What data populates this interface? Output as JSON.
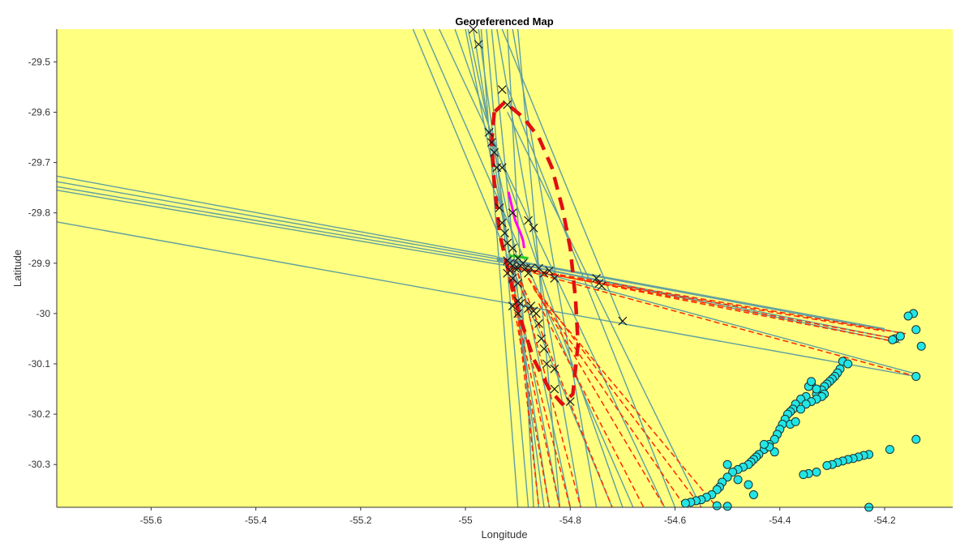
{
  "chart_data": {
    "type": "scatter",
    "title": "Georeferenced Map",
    "xlabel": "Longitude",
    "ylabel": "Latitude",
    "xlim": [
      -55.78,
      -54.07
    ],
    "ylim": [
      -30.385,
      -29.435
    ],
    "xticks": [
      -55.6,
      -55.4,
      -55.2,
      -55,
      -54.8,
      -54.6,
      -54.4,
      -54.2
    ],
    "yticks": [
      -29.5,
      -29.6,
      -29.7,
      -29.8,
      -29.9,
      -30,
      -30.1,
      -30.2,
      -30.3
    ],
    "grid": false,
    "colors": {
      "background": "#ffff80",
      "bearing_line": "#5f9ea0",
      "dashed_line": "#ff2a00",
      "ellipse": "#e01010",
      "receiver_fill": "#22e6e6",
      "receiver_edge": "#1a3030",
      "cross": "#1a1a1a",
      "track_magenta": "#ff00ff",
      "track_green": "#22cc22"
    },
    "series": [
      {
        "kind": "bearing_lines",
        "segments": [
          [
            [
              -55.78,
              -29.727
            ],
            [
              -54.94,
              -29.887
            ]
          ],
          [
            [
              -55.78,
              -29.738
            ],
            [
              -54.93,
              -29.893
            ]
          ],
          [
            [
              -55.78,
              -29.748
            ],
            [
              -54.92,
              -29.9
            ]
          ],
          [
            [
              -55.78,
              -29.755
            ],
            [
              -54.92,
              -29.905
            ]
          ],
          [
            [
              -55.78,
              -29.818
            ],
            [
              -54.14,
              -30.125
            ]
          ],
          [
            [
              -54.94,
              -29.895
            ],
            [
              -54.14,
              -30.12
            ]
          ],
          [
            [
              -54.94,
              -29.893
            ],
            [
              -54.18,
              -30.05
            ]
          ],
          [
            [
              -54.94,
              -29.89
            ],
            [
              -54.16,
              -30.04
            ]
          ],
          [
            [
              -54.94,
              -29.888
            ],
            [
              -54.2,
              -30.03
            ]
          ],
          [
            [
              -54.94,
              -29.893
            ],
            [
              -54.17,
              -30.058
            ]
          ],
          [
            [
              -55.1,
              -29.435
            ],
            [
              -54.72,
              -30.385
            ]
          ],
          [
            [
              -55.08,
              -29.435
            ],
            [
              -54.68,
              -30.385
            ]
          ],
          [
            [
              -55.05,
              -29.435
            ],
            [
              -54.62,
              -30.385
            ]
          ],
          [
            [
              -55.02,
              -29.435
            ],
            [
              -54.7,
              -30.385
            ]
          ],
          [
            [
              -55.0,
              -29.435
            ],
            [
              -54.82,
              -30.385
            ]
          ],
          [
            [
              -54.995,
              -29.435
            ],
            [
              -54.8,
              -30.385
            ]
          ],
          [
            [
              -54.985,
              -29.435
            ],
            [
              -54.84,
              -30.385
            ]
          ],
          [
            [
              -54.975,
              -29.435
            ],
            [
              -54.85,
              -30.385
            ]
          ],
          [
            [
              -54.97,
              -29.435
            ],
            [
              -54.9,
              -30.385
            ]
          ],
          [
            [
              -54.96,
              -29.435
            ],
            [
              -54.88,
              -30.385
            ]
          ],
          [
            [
              -54.95,
              -29.435
            ],
            [
              -54.86,
              -30.385
            ]
          ],
          [
            [
              -54.94,
              -29.435
            ],
            [
              -54.78,
              -30.385
            ]
          ],
          [
            [
              -54.93,
              -29.435
            ],
            [
              -54.7,
              -30.02
            ]
          ],
          [
            [
              -54.92,
              -29.435
            ],
            [
              -54.87,
              -30.385
            ]
          ],
          [
            [
              -54.91,
              -29.435
            ],
            [
              -54.75,
              -30.385
            ]
          ],
          [
            [
              -54.9,
              -29.435
            ],
            [
              -54.82,
              -30.385
            ]
          ],
          [
            [
              -54.92,
              -29.55
            ],
            [
              -54.6,
              -30.385
            ]
          ],
          [
            [
              -54.92,
              -29.6
            ],
            [
              -54.55,
              -30.385
            ]
          ]
        ]
      },
      {
        "kind": "dashed_lines",
        "segments": [
          [
            [
              -54.92,
              -29.905
            ],
            [
              -54.14,
              -30.125
            ]
          ],
          [
            [
              -54.92,
              -29.905
            ],
            [
              -54.16,
              -30.04
            ]
          ],
          [
            [
              -54.92,
              -29.905
            ],
            [
              -54.18,
              -30.05
            ]
          ],
          [
            [
              -54.92,
              -29.905
            ],
            [
              -54.17,
              -30.058
            ]
          ],
          [
            [
              -54.91,
              -29.91
            ],
            [
              -54.2,
              -30.035
            ]
          ],
          [
            [
              -54.92,
              -29.91
            ],
            [
              -54.82,
              -30.385
            ]
          ],
          [
            [
              -54.92,
              -29.91
            ],
            [
              -54.84,
              -30.385
            ]
          ],
          [
            [
              -54.92,
              -29.91
            ],
            [
              -54.8,
              -30.385
            ]
          ],
          [
            [
              -54.91,
              -29.91
            ],
            [
              -54.86,
              -30.385
            ]
          ],
          [
            [
              -54.9,
              -29.92
            ],
            [
              -54.78,
              -30.385
            ]
          ],
          [
            [
              -54.9,
              -29.92
            ],
            [
              -54.72,
              -30.385
            ]
          ],
          [
            [
              -54.88,
              -29.93
            ],
            [
              -54.62,
              -30.385
            ]
          ],
          [
            [
              -54.88,
              -29.93
            ],
            [
              -54.55,
              -30.385
            ]
          ],
          [
            [
              -54.87,
              -29.95
            ],
            [
              -54.52,
              -30.385
            ]
          ],
          [
            [
              -54.87,
              -29.95
            ],
            [
              -54.58,
              -30.385
            ]
          ],
          [
            [
              -54.86,
              -29.98
            ],
            [
              -54.66,
              -30.385
            ]
          ]
        ]
      },
      {
        "kind": "ellipse",
        "center": [
          -54.865,
          -29.88
        ],
        "points": [
          [
            -54.945,
            -29.6
          ],
          [
            -54.95,
            -29.66
          ],
          [
            -54.945,
            -29.74
          ],
          [
            -54.935,
            -29.84
          ],
          [
            -54.915,
            -29.93
          ],
          [
            -54.895,
            -30.01
          ],
          [
            -54.87,
            -30.09
          ],
          [
            -54.84,
            -30.15
          ],
          [
            -54.815,
            -30.18
          ],
          [
            -54.795,
            -30.16
          ],
          [
            -54.785,
            -30.06
          ],
          [
            -54.79,
            -29.97
          ],
          [
            -54.8,
            -29.87
          ],
          [
            -54.815,
            -29.79
          ],
          [
            -54.835,
            -29.71
          ],
          [
            -54.86,
            -29.65
          ],
          [
            -54.89,
            -29.61
          ],
          [
            -54.925,
            -29.58
          ],
          [
            -54.945,
            -29.6
          ]
        ]
      },
      {
        "kind": "crosses",
        "points": [
          [
            -54.985,
            -29.435
          ],
          [
            -54.975,
            -29.465
          ],
          [
            -54.93,
            -29.555
          ],
          [
            -54.92,
            -29.585
          ],
          [
            -54.955,
            -29.64
          ],
          [
            -54.95,
            -29.66
          ],
          [
            -54.945,
            -29.68
          ],
          [
            -54.94,
            -29.71
          ],
          [
            -54.93,
            -29.71
          ],
          [
            -54.935,
            -29.79
          ],
          [
            -54.93,
            -29.82
          ],
          [
            -54.925,
            -29.84
          ],
          [
            -54.92,
            -29.86
          ],
          [
            -54.91,
            -29.87
          ],
          [
            -54.9,
            -29.89
          ],
          [
            -54.91,
            -29.8
          ],
          [
            -54.88,
            -29.815
          ],
          [
            -54.87,
            -29.83
          ],
          [
            -54.92,
            -29.895
          ],
          [
            -54.915,
            -29.9
          ],
          [
            -54.91,
            -29.905
          ],
          [
            -54.905,
            -29.91
          ],
          [
            -54.9,
            -29.91
          ],
          [
            -54.895,
            -29.905
          ],
          [
            -54.89,
            -29.9
          ],
          [
            -54.885,
            -29.91
          ],
          [
            -54.88,
            -29.92
          ],
          [
            -54.875,
            -29.91
          ],
          [
            -54.86,
            -29.91
          ],
          [
            -54.85,
            -29.92
          ],
          [
            -54.84,
            -29.915
          ],
          [
            -54.83,
            -29.93
          ],
          [
            -54.92,
            -29.92
          ],
          [
            -54.91,
            -29.93
          ],
          [
            -54.9,
            -29.94
          ],
          [
            -54.915,
            -29.915
          ],
          [
            -54.9,
            -29.975
          ],
          [
            -54.895,
            -29.98
          ],
          [
            -54.88,
            -29.99
          ],
          [
            -54.875,
            -29.985
          ],
          [
            -54.87,
            -29.995
          ],
          [
            -54.865,
            -30.0
          ],
          [
            -54.86,
            -30.02
          ],
          [
            -54.855,
            -30.05
          ],
          [
            -54.85,
            -30.07
          ],
          [
            -54.845,
            -30.1
          ],
          [
            -54.83,
            -30.11
          ],
          [
            -54.83,
            -30.15
          ],
          [
            -54.8,
            -30.175
          ],
          [
            -54.75,
            -29.93
          ],
          [
            -54.745,
            -29.94
          ],
          [
            -54.74,
            -29.945
          ],
          [
            -54.7,
            -30.015
          ],
          [
            -54.91,
            -29.985
          ],
          [
            -54.9,
            -30.0
          ]
        ]
      },
      {
        "kind": "receivers",
        "points": [
          [
            -54.145,
            -30.0
          ],
          [
            -54.155,
            -30.005
          ],
          [
            -54.14,
            -30.032
          ],
          [
            -54.13,
            -30.065
          ],
          [
            -54.14,
            -30.125
          ],
          [
            -54.18,
            -30.05
          ],
          [
            -54.185,
            -30.052
          ],
          [
            -54.17,
            -30.045
          ],
          [
            -54.14,
            -30.25
          ],
          [
            -54.28,
            -30.095
          ],
          [
            -54.27,
            -30.1
          ],
          [
            -54.285,
            -30.11
          ],
          [
            -54.29,
            -30.118
          ],
          [
            -54.295,
            -30.125
          ],
          [
            -54.3,
            -30.13
          ],
          [
            -54.305,
            -30.135
          ],
          [
            -54.31,
            -30.14
          ],
          [
            -54.315,
            -30.145
          ],
          [
            -54.32,
            -30.152
          ],
          [
            -54.33,
            -30.16
          ],
          [
            -54.34,
            -30.14
          ],
          [
            -54.345,
            -30.145
          ],
          [
            -54.35,
            -30.165
          ],
          [
            -54.36,
            -30.17
          ],
          [
            -54.37,
            -30.18
          ],
          [
            -54.375,
            -30.19
          ],
          [
            -54.38,
            -30.195
          ],
          [
            -54.385,
            -30.2
          ],
          [
            -54.39,
            -30.21
          ],
          [
            -54.395,
            -30.22
          ],
          [
            -54.4,
            -30.23
          ],
          [
            -54.405,
            -30.24
          ],
          [
            -54.41,
            -30.25
          ],
          [
            -54.42,
            -30.26
          ],
          [
            -54.43,
            -30.27
          ],
          [
            -54.44,
            -30.28
          ],
          [
            -54.445,
            -30.285
          ],
          [
            -54.45,
            -30.29
          ],
          [
            -54.455,
            -30.295
          ],
          [
            -54.46,
            -30.3
          ],
          [
            -54.47,
            -30.305
          ],
          [
            -54.48,
            -30.31
          ],
          [
            -54.49,
            -30.315
          ],
          [
            -54.5,
            -30.325
          ],
          [
            -54.51,
            -30.335
          ],
          [
            -54.515,
            -30.345
          ],
          [
            -54.52,
            -30.35
          ],
          [
            -54.53,
            -30.36
          ],
          [
            -54.54,
            -30.365
          ],
          [
            -54.55,
            -30.37
          ],
          [
            -54.56,
            -30.372
          ],
          [
            -54.57,
            -30.375
          ],
          [
            -54.58,
            -30.377
          ],
          [
            -54.52,
            -30.382
          ],
          [
            -54.5,
            -30.383
          ],
          [
            -54.45,
            -30.36
          ],
          [
            -54.46,
            -30.34
          ],
          [
            -54.48,
            -30.33
          ],
          [
            -54.5,
            -30.3
          ],
          [
            -54.41,
            -30.275
          ],
          [
            -54.42,
            -30.265
          ],
          [
            -54.43,
            -30.26
          ],
          [
            -54.38,
            -30.22
          ],
          [
            -54.37,
            -30.215
          ],
          [
            -54.33,
            -30.15
          ],
          [
            -54.34,
            -30.135
          ],
          [
            -54.315,
            -30.16
          ],
          [
            -54.32,
            -30.165
          ],
          [
            -54.33,
            -30.17
          ],
          [
            -54.34,
            -30.175
          ],
          [
            -54.35,
            -30.18
          ],
          [
            -54.36,
            -30.19
          ],
          [
            -54.19,
            -30.27
          ],
          [
            -54.23,
            -30.28
          ],
          [
            -54.24,
            -30.282
          ],
          [
            -54.25,
            -30.285
          ],
          [
            -54.26,
            -30.288
          ],
          [
            -54.27,
            -30.29
          ],
          [
            -54.28,
            -30.293
          ],
          [
            -54.29,
            -30.296
          ],
          [
            -54.3,
            -30.3
          ],
          [
            -54.31,
            -30.302
          ],
          [
            -54.33,
            -30.315
          ],
          [
            -54.345,
            -30.318
          ],
          [
            -54.355,
            -30.32
          ],
          [
            -54.23,
            -30.385
          ]
        ]
      },
      {
        "kind": "track_magenta",
        "points": [
          [
            -54.918,
            -29.758
          ],
          [
            -54.905,
            -29.815
          ],
          [
            -54.895,
            -29.84
          ],
          [
            -54.89,
            -29.855
          ],
          [
            -54.888,
            -29.87
          ]
        ]
      },
      {
        "kind": "track_green",
        "points": [
          [
            -54.915,
            -29.885
          ],
          [
            -54.9,
            -29.887
          ],
          [
            -54.88,
            -29.89
          ]
        ]
      }
    ]
  }
}
